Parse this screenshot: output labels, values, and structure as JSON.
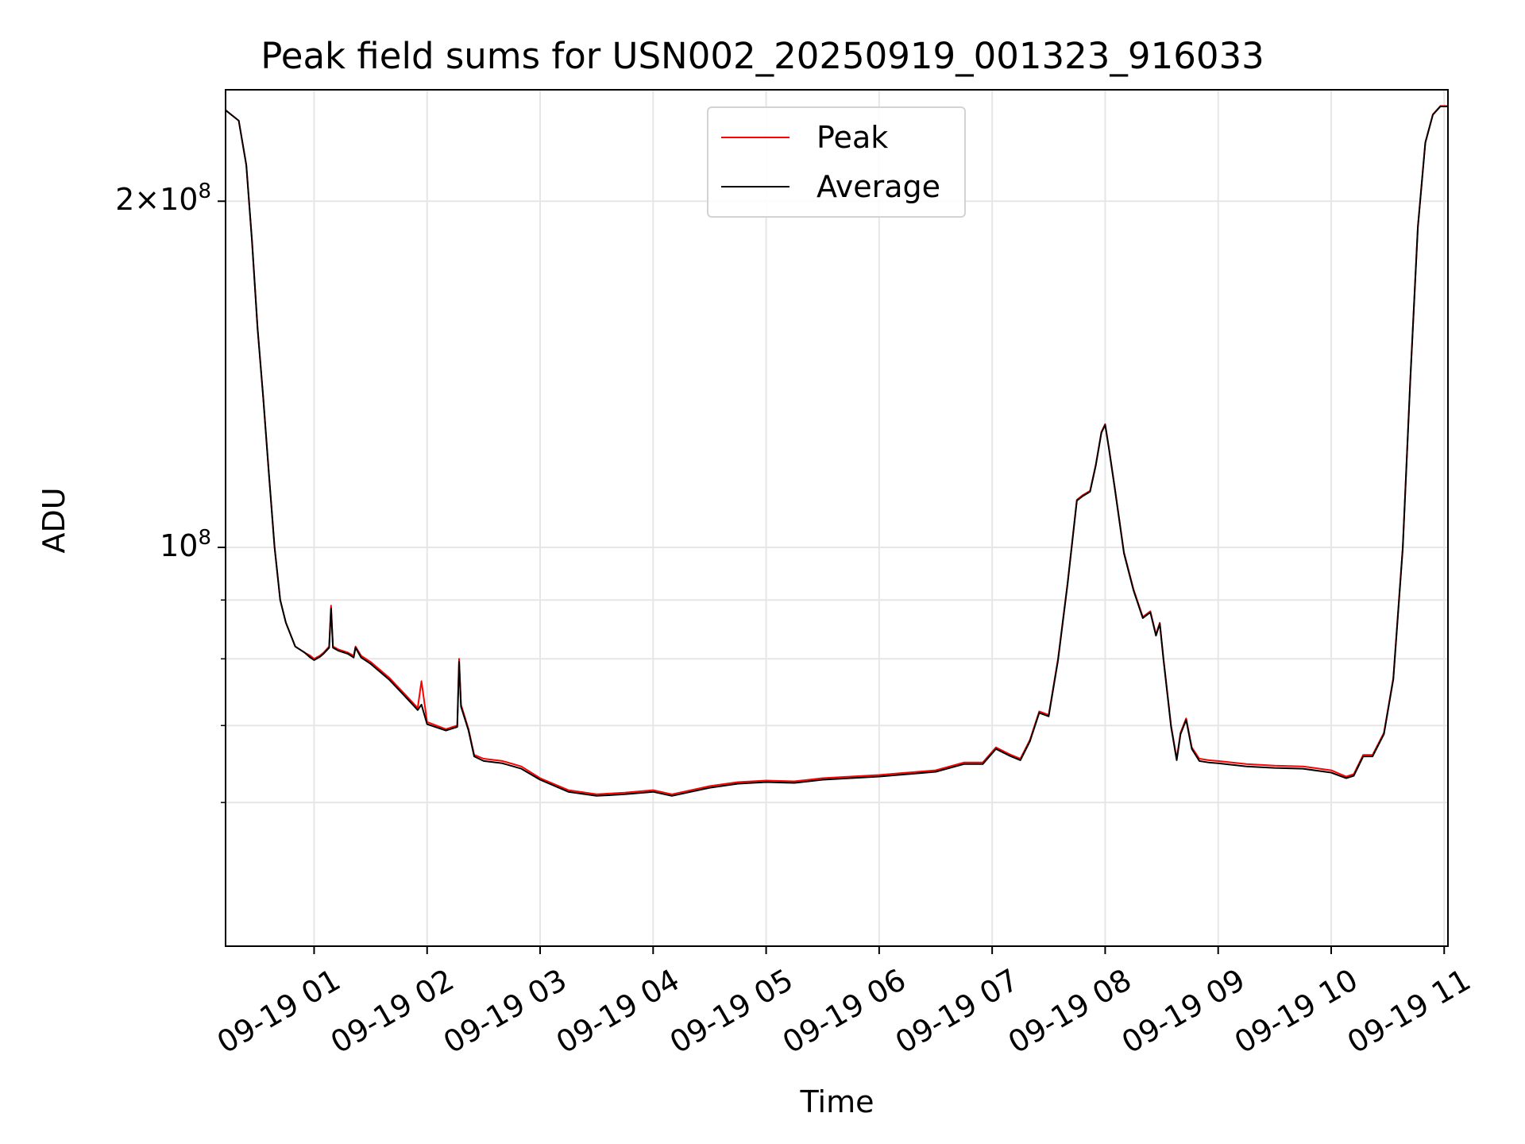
{
  "chart_data": {
    "type": "line",
    "title": "Peak field sums for USN002_20250919_001323_916033",
    "xlabel": "Time",
    "ylabel": "ADU",
    "yscale": "log",
    "ylim": [
      45000000,
      250000000
    ],
    "xlim": [
      "2025-09-19 00:13",
      "2025-09-19 11:02"
    ],
    "grid": true,
    "legend_position": "upper center",
    "x_tick_labels": [
      "09-19 01",
      "09-19 02",
      "09-19 03",
      "09-19 04",
      "09-19 05",
      "09-19 06",
      "09-19 07",
      "09-19 08",
      "09-19 09",
      "09-19 10",
      "09-19 11"
    ],
    "y_tick_labels": [
      {
        "value": 200000000,
        "mantissa": "2",
        "times": "×",
        "base": "10",
        "exponent": "8"
      },
      {
        "value": 100000000,
        "base": "10",
        "exponent": "8"
      }
    ],
    "series": [
      {
        "name": "Peak",
        "color": "#ff0000",
        "x": [
          "2025-09-19 00:13",
          "2025-09-19 00:20",
          "2025-09-19 00:24",
          "2025-09-19 00:27",
          "2025-09-19 00:30",
          "2025-09-19 00:33",
          "2025-09-19 00:36",
          "2025-09-19 00:39",
          "2025-09-19 00:42",
          "2025-09-19 00:45",
          "2025-09-19 00:50",
          "2025-09-19 00:55",
          "2025-09-19 00:58",
          "2025-09-19 01:00",
          "2025-09-19 01:03",
          "2025-09-19 01:05",
          "2025-09-19 01:08",
          "2025-09-19 01:09",
          "2025-09-19 01:10",
          "2025-09-19 01:13",
          "2025-09-19 01:18",
          "2025-09-19 01:21",
          "2025-09-19 01:22",
          "2025-09-19 01:25",
          "2025-09-19 01:30",
          "2025-09-19 01:40",
          "2025-09-19 01:50",
          "2025-09-19 01:55",
          "2025-09-19 01:57",
          "2025-09-19 02:00",
          "2025-09-19 02:10",
          "2025-09-19 02:16",
          "2025-09-19 02:17",
          "2025-09-19 02:18",
          "2025-09-19 02:22",
          "2025-09-19 02:25",
          "2025-09-19 02:30",
          "2025-09-19 02:40",
          "2025-09-19 02:50",
          "2025-09-19 03:00",
          "2025-09-19 03:15",
          "2025-09-19 03:30",
          "2025-09-19 03:45",
          "2025-09-19 04:00",
          "2025-09-19 04:10",
          "2025-09-19 04:30",
          "2025-09-19 04:45",
          "2025-09-19 05:00",
          "2025-09-19 05:15",
          "2025-09-19 05:30",
          "2025-09-19 05:45",
          "2025-09-19 06:00",
          "2025-09-19 06:15",
          "2025-09-19 06:30",
          "2025-09-19 06:45",
          "2025-09-19 06:55",
          "2025-09-19 07:02",
          "2025-09-19 07:10",
          "2025-09-19 07:15",
          "2025-09-19 07:20",
          "2025-09-19 07:25",
          "2025-09-19 07:30",
          "2025-09-19 07:35",
          "2025-09-19 07:40",
          "2025-09-19 07:45",
          "2025-09-19 07:48",
          "2025-09-19 07:52",
          "2025-09-19 07:55",
          "2025-09-19 07:58",
          "2025-09-19 08:00",
          "2025-09-19 08:02",
          "2025-09-19 08:05",
          "2025-09-19 08:10",
          "2025-09-19 08:15",
          "2025-09-19 08:20",
          "2025-09-19 08:24",
          "2025-09-19 08:27",
          "2025-09-19 08:29",
          "2025-09-19 08:31",
          "2025-09-19 08:35",
          "2025-09-19 08:38",
          "2025-09-19 08:40",
          "2025-09-19 08:43",
          "2025-09-19 08:46",
          "2025-09-19 08:50",
          "2025-09-19 08:55",
          "2025-09-19 09:00",
          "2025-09-19 09:15",
          "2025-09-19 09:30",
          "2025-09-19 09:45",
          "2025-09-19 10:00",
          "2025-09-19 10:08",
          "2025-09-19 10:12",
          "2025-09-19 10:17",
          "2025-09-19 10:22",
          "2025-09-19 10:28",
          "2025-09-19 10:33",
          "2025-09-19 10:38",
          "2025-09-19 10:42",
          "2025-09-19 10:46",
          "2025-09-19 10:50",
          "2025-09-19 10:54",
          "2025-09-19 10:58",
          "2025-09-19 11:02"
        ],
        "y": [
          240000000,
          235000000,
          215000000,
          185000000,
          155000000,
          135000000,
          116000000,
          100000000,
          90000000,
          86000000,
          82000000,
          81000000,
          80500000,
          80000000,
          80500000,
          81000000,
          82000000,
          89000000,
          82000000,
          81500000,
          81000000,
          80500000,
          82000000,
          80500000,
          79500000,
          77000000,
          74000000,
          72500000,
          76500000,
          70500000,
          69500000,
          70000000,
          80000000,
          73000000,
          69500000,
          66000000,
          65500000,
          65200000,
          64500000,
          63000000,
          61500000,
          61000000,
          61200000,
          61500000,
          61000000,
          62000000,
          62500000,
          62700000,
          62600000,
          63000000,
          63200000,
          63400000,
          63700000,
          64000000,
          65000000,
          65000000,
          67000000,
          66000000,
          65500000,
          68000000,
          72000000,
          71500000,
          80000000,
          93000000,
          110000000,
          111000000,
          112000000,
          118000000,
          126000000,
          128000000,
          122000000,
          113000000,
          99000000,
          92000000,
          87000000,
          88000000,
          84000000,
          86000000,
          80000000,
          70000000,
          65500000,
          69000000,
          71000000,
          67000000,
          65500000,
          65300000,
          65200000,
          64800000,
          64600000,
          64500000,
          64000000,
          63200000,
          63500000,
          66000000,
          66000000,
          69000000,
          77000000,
          100000000,
          140000000,
          190000000,
          225000000,
          238000000,
          242000000,
          242000000
        ]
      },
      {
        "name": "Average",
        "color": "#000000",
        "x": [
          "2025-09-19 00:13",
          "2025-09-19 00:20",
          "2025-09-19 00:24",
          "2025-09-19 00:27",
          "2025-09-19 00:30",
          "2025-09-19 00:33",
          "2025-09-19 00:36",
          "2025-09-19 00:39",
          "2025-09-19 00:42",
          "2025-09-19 00:45",
          "2025-09-19 00:50",
          "2025-09-19 00:55",
          "2025-09-19 00:58",
          "2025-09-19 01:00",
          "2025-09-19 01:03",
          "2025-09-19 01:05",
          "2025-09-19 01:08",
          "2025-09-19 01:09",
          "2025-09-19 01:10",
          "2025-09-19 01:13",
          "2025-09-19 01:18",
          "2025-09-19 01:21",
          "2025-09-19 01:22",
          "2025-09-19 01:25",
          "2025-09-19 01:30",
          "2025-09-19 01:40",
          "2025-09-19 01:50",
          "2025-09-19 01:55",
          "2025-09-19 01:57",
          "2025-09-19 02:00",
          "2025-09-19 02:10",
          "2025-09-19 02:16",
          "2025-09-19 02:17",
          "2025-09-19 02:18",
          "2025-09-19 02:22",
          "2025-09-19 02:25",
          "2025-09-19 02:30",
          "2025-09-19 02:40",
          "2025-09-19 02:50",
          "2025-09-19 03:00",
          "2025-09-19 03:15",
          "2025-09-19 03:30",
          "2025-09-19 03:45",
          "2025-09-19 04:00",
          "2025-09-19 04:10",
          "2025-09-19 04:30",
          "2025-09-19 04:45",
          "2025-09-19 05:00",
          "2025-09-19 05:15",
          "2025-09-19 05:30",
          "2025-09-19 05:45",
          "2025-09-19 06:00",
          "2025-09-19 06:15",
          "2025-09-19 06:30",
          "2025-09-19 06:45",
          "2025-09-19 06:55",
          "2025-09-19 07:02",
          "2025-09-19 07:10",
          "2025-09-19 07:15",
          "2025-09-19 07:20",
          "2025-09-19 07:25",
          "2025-09-19 07:30",
          "2025-09-19 07:35",
          "2025-09-19 07:40",
          "2025-09-19 07:45",
          "2025-09-19 07:48",
          "2025-09-19 07:52",
          "2025-09-19 07:55",
          "2025-09-19 07:58",
          "2025-09-19 08:00",
          "2025-09-19 08:02",
          "2025-09-19 08:05",
          "2025-09-19 08:10",
          "2025-09-19 08:15",
          "2025-09-19 08:20",
          "2025-09-19 08:24",
          "2025-09-19 08:27",
          "2025-09-19 08:29",
          "2025-09-19 08:31",
          "2025-09-19 08:35",
          "2025-09-19 08:38",
          "2025-09-19 08:40",
          "2025-09-19 08:43",
          "2025-09-19 08:46",
          "2025-09-19 08:50",
          "2025-09-19 08:55",
          "2025-09-19 09:00",
          "2025-09-19 09:15",
          "2025-09-19 09:30",
          "2025-09-19 09:45",
          "2025-09-19 10:00",
          "2025-09-19 10:08",
          "2025-09-19 10:12",
          "2025-09-19 10:17",
          "2025-09-19 10:22",
          "2025-09-19 10:28",
          "2025-09-19 10:33",
          "2025-09-19 10:38",
          "2025-09-19 10:42",
          "2025-09-19 10:46",
          "2025-09-19 10:50",
          "2025-09-19 10:54",
          "2025-09-19 10:58",
          "2025-09-19 11:02"
        ],
        "y": [
          240000000,
          235000000,
          215000000,
          185000000,
          155000000,
          135000000,
          116000000,
          100000000,
          90000000,
          86000000,
          82000000,
          81000000,
          80200000,
          79800000,
          80300000,
          80800000,
          81800000,
          88500000,
          81800000,
          81300000,
          80800000,
          80200000,
          81800000,
          80200000,
          79200000,
          76700000,
          73700000,
          72200000,
          73000000,
          70200000,
          69300000,
          69800000,
          79500000,
          72700000,
          69300000,
          65800000,
          65200000,
          64900000,
          64200000,
          62800000,
          61300000,
          60800000,
          61000000,
          61300000,
          60800000,
          61800000,
          62300000,
          62500000,
          62400000,
          62800000,
          63000000,
          63200000,
          63500000,
          63800000,
          64800000,
          64800000,
          66800000,
          65800000,
          65300000,
          67800000,
          71800000,
          71300000,
          79800000,
          92800000,
          109800000,
          110800000,
          111800000,
          117800000,
          125800000,
          127800000,
          121800000,
          112800000,
          98800000,
          91800000,
          86800000,
          87800000,
          83800000,
          85800000,
          79800000,
          69800000,
          65300000,
          68800000,
          70800000,
          66800000,
          65200000,
          65000000,
          64900000,
          64500000,
          64300000,
          64200000,
          63700000,
          63000000,
          63300000,
          65800000,
          65800000,
          68800000,
          76800000,
          99800000,
          139800000,
          189800000,
          224800000,
          237800000,
          241800000,
          241800000
        ]
      }
    ]
  }
}
